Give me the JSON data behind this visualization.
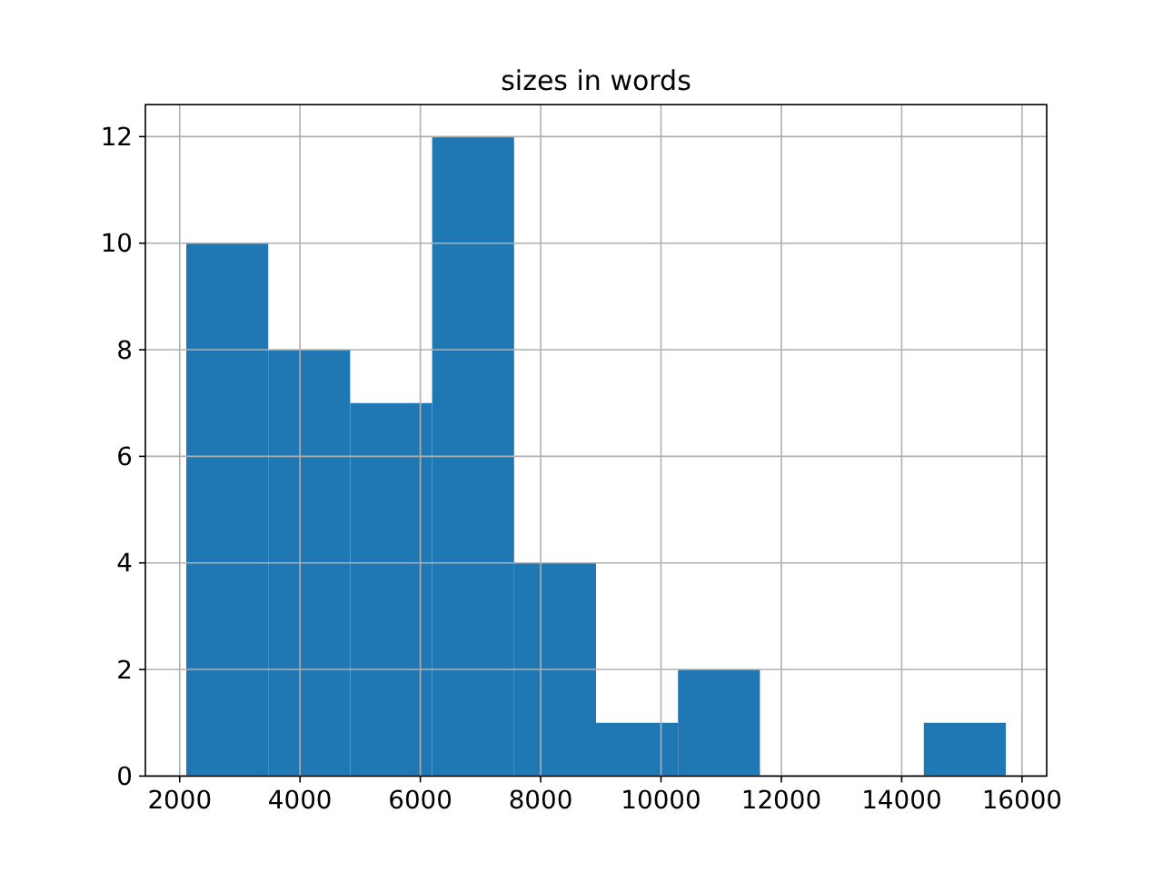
{
  "chart_data": {
    "type": "histogram",
    "title": "sizes in words",
    "bins": [
      2110,
      3472,
      4834,
      6196,
      7558,
      8920,
      10282,
      11644,
      13006,
      14368,
      15730
    ],
    "values": [
      10,
      8,
      7,
      12,
      4,
      1,
      2,
      0,
      0,
      1
    ],
    "color": "#1f77b4",
    "xlim": [
      1430,
      16410
    ],
    "xticks": [
      2000,
      4000,
      6000,
      8000,
      10000,
      12000,
      14000,
      16000
    ],
    "ylim": [
      0,
      12.6
    ],
    "yticks": [
      0,
      2,
      4,
      6,
      8,
      10,
      12
    ],
    "grid": true
  }
}
